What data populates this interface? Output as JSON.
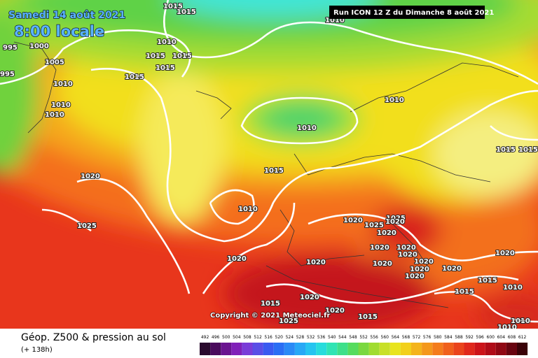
{
  "header": {
    "date": "Samedi 14 août 2021",
    "time": "8:00 locale",
    "run": "Run ICON 12 Z du Dimanche 8 août 2021"
  },
  "copyright": "Copyright © 2021 Meteociel.fr",
  "legend": {
    "title": "Géop. Z500 & pression au sol",
    "lead": "(+ 138h)",
    "scale": [
      492,
      496,
      500,
      504,
      508,
      512,
      516,
      520,
      524,
      528,
      532,
      536,
      540,
      544,
      548,
      552,
      556,
      560,
      564,
      568,
      572,
      576,
      580,
      584,
      588,
      592,
      596,
      600,
      604,
      608,
      612
    ]
  },
  "isobar_labels": [
    "1015",
    "1015",
    "1010",
    "995",
    "1000",
    "1010",
    "1015",
    "1015",
    "1015",
    "1005",
    "1015",
    "1010",
    "1010",
    "1010",
    "995",
    "1010",
    "1010",
    "1015",
    "1015",
    "1015",
    "1020",
    "1010",
    "1025",
    "1020",
    "1025",
    "1025",
    "1020",
    "1020",
    "1020",
    "1020",
    "1020",
    "1020",
    "1020",
    "1020",
    "1020",
    "1020",
    "1020",
    "1020",
    "1020",
    "1015",
    "1015",
    "1010",
    "1020",
    "1015",
    "1020",
    "1015",
    "1025",
    "1010",
    "1010"
  ]
}
